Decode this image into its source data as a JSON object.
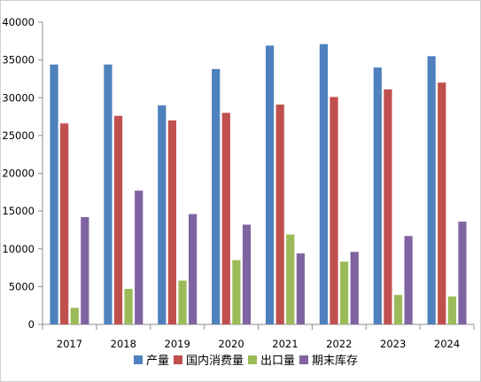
{
  "chart_data": {
    "type": "bar",
    "categories": [
      "2017",
      "2018",
      "2019",
      "2020",
      "2021",
      "2022",
      "2023",
      "2024"
    ],
    "series": [
      {
        "name": "产量",
        "color": "#4e81bd",
        "values": [
          34400,
          34400,
          29000,
          33800,
          36900,
          37100,
          34000,
          35500
        ]
      },
      {
        "name": "国内消费量",
        "color": "#c0504d",
        "values": [
          26600,
          27600,
          27000,
          28000,
          29100,
          30100,
          31100,
          32000
        ]
      },
      {
        "name": "出口量",
        "color": "#9bbb59",
        "values": [
          2200,
          4700,
          5800,
          8500,
          11900,
          8300,
          3900,
          3700
        ]
      },
      {
        "name": "期末库存",
        "color": "#8064a2",
        "values": [
          14200,
          17700,
          14600,
          13200,
          9400,
          9600,
          11700,
          13600
        ]
      }
    ],
    "ylim": [
      0,
      40000
    ],
    "yticks": [
      0,
      5000,
      10000,
      15000,
      20000,
      25000,
      30000,
      35000,
      40000
    ],
    "grid": false,
    "legend_position": "bottom"
  }
}
